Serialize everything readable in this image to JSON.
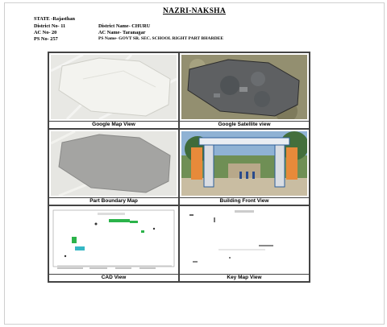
{
  "title": "NAZRI-NAKSHA",
  "state": "STATE -Rajasthan",
  "district_no": "District No- 11",
  "district_name": "District Name- CHURU",
  "ac_no": "AC No- 20",
  "ac_name": "AC Name- Taranagar",
  "ps_no": "PS No- 257",
  "ps_name": "PS Name- GOVT SR. SEC. SCHOOL RIGHT PART BHARDEE",
  "captions": {
    "google_map": "Google Map View",
    "satellite": "Google Satellite view",
    "boundary": "Part Boundary Map",
    "building": "Building Front View",
    "cad": "CAD View",
    "keymap": "Key Map View"
  }
}
